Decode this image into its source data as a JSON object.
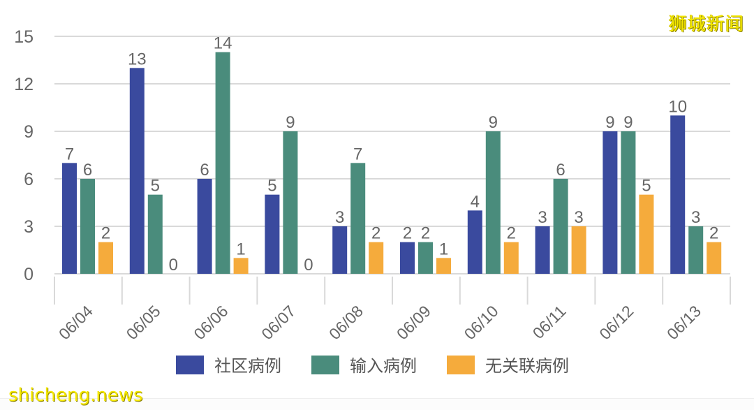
{
  "watermarks": {
    "top_right": "狮城新闻",
    "bottom_left": "shicheng.news"
  },
  "colors": {
    "community": "#3a4a9e",
    "imported": "#4a8c7c",
    "unlinked": "#f5ab3c",
    "grid": "#d9d9d9",
    "text": "#666666"
  },
  "chart_data": {
    "type": "bar",
    "title": "",
    "xlabel": "",
    "ylabel": "",
    "categories": [
      "06/04",
      "06/05",
      "06/06",
      "06/07",
      "06/08",
      "06/09",
      "06/10",
      "06/11",
      "06/12",
      "06/13"
    ],
    "series": [
      {
        "name": "社区病例",
        "color": "#3a4a9e",
        "values": [
          7,
          13,
          6,
          5,
          3,
          2,
          4,
          3,
          9,
          10
        ]
      },
      {
        "name": "输入病例",
        "color": "#4a8c7c",
        "values": [
          6,
          5,
          14,
          9,
          7,
          2,
          9,
          6,
          9,
          3
        ]
      },
      {
        "name": "无关联病例",
        "color": "#f5ab3c",
        "values": [
          2,
          0,
          1,
          0,
          2,
          1,
          2,
          3,
          5,
          2
        ]
      }
    ],
    "ylim": [
      0,
      15
    ],
    "yticks": [
      0,
      3,
      6,
      9,
      12,
      15
    ],
    "grid": true,
    "data_labels": true,
    "legend_position": "bottom",
    "xtick_rotation": -45
  }
}
